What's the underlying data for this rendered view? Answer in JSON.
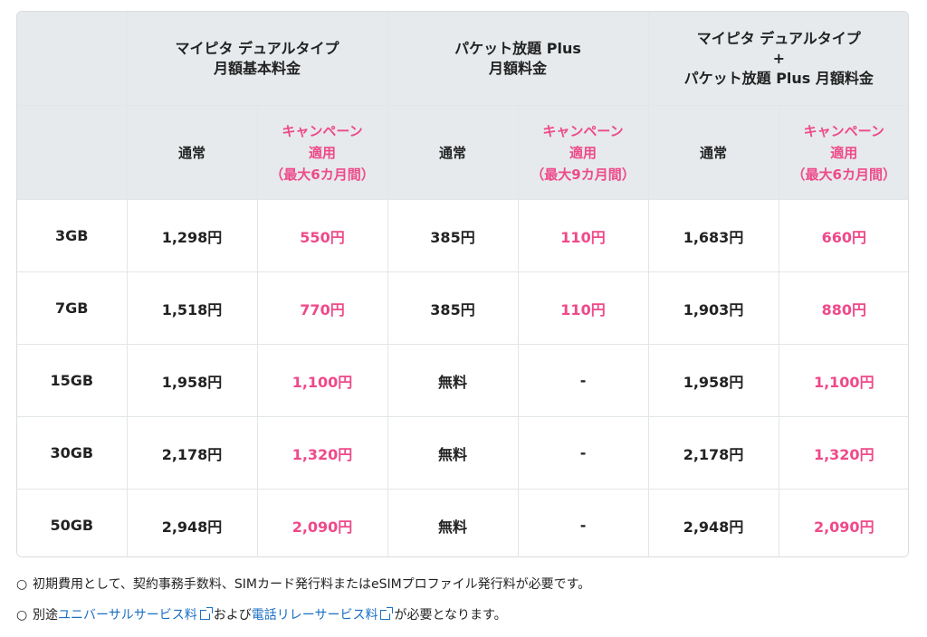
{
  "table": {
    "group_headers": [
      {
        "line1": "マイピタ デュアルタイプ",
        "line2": "月額基本料金",
        "line3": ""
      },
      {
        "line1": "パケット放題 Plus",
        "line2": "月額料金",
        "line3": ""
      },
      {
        "line1": "マイピタ デュアルタイプ",
        "line2": "+",
        "line3": "パケット放題 Plus 月額料金"
      }
    ],
    "sub_headers": [
      {
        "normal": "通常",
        "camp1": "キャンペーン",
        "camp2": "適用",
        "camp3": "（最大6カ月間）"
      },
      {
        "normal": "通常",
        "camp1": "キャンペーン",
        "camp2": "適用",
        "camp3": "（最大9カ月間）"
      },
      {
        "normal": "通常",
        "camp1": "キャンペーン",
        "camp2": "適用",
        "camp3": "（最大6カ月間）"
      }
    ],
    "rows": [
      {
        "plan": "3GB",
        "v1": "1,298円",
        "v2": "550円",
        "v3": "385円",
        "v4": "110円",
        "v5": "1,683円",
        "v6": "660円"
      },
      {
        "plan": "7GB",
        "v1": "1,518円",
        "v2": "770円",
        "v3": "385円",
        "v4": "110円",
        "v5": "1,903円",
        "v6": "880円"
      },
      {
        "plan": "15GB",
        "v1": "1,958円",
        "v2": "1,100円",
        "v3": "無料",
        "v4": "-",
        "v5": "1,958円",
        "v6": "1,100円"
      },
      {
        "plan": "30GB",
        "v1": "2,178円",
        "v2": "1,320円",
        "v3": "無料",
        "v4": "-",
        "v5": "2,178円",
        "v6": "1,320円"
      },
      {
        "plan": "50GB",
        "v1": "2,948円",
        "v2": "2,090円",
        "v3": "無料",
        "v4": "-",
        "v5": "2,948円",
        "v6": "2,090円"
      }
    ]
  },
  "notes": {
    "bullet": "○",
    "note1": "初期費用として、契約事務手数料、SIMカード発行料またはeSIMプロファイル発行料が必要です。",
    "note2_prefix": "別途",
    "note2_link1": "ユニバーサルサービス料",
    "note2_mid": "および",
    "note2_link2": "電話リレーサービス料",
    "note2_suffix": "が必要となります。"
  },
  "colors": {
    "accent_pink": "#ee4a8a",
    "header_bg": "#e6eaec",
    "link": "#1a6fc4"
  },
  "icons": [
    "external-link-icon"
  ]
}
